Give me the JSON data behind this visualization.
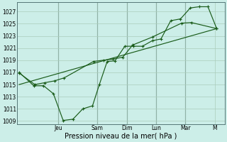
{
  "xlabel": "Pression niveau de la mer( hPa )",
  "bg_color": "#cceee8",
  "grid_color": "#aaccbb",
  "line_color": "#1a5c1a",
  "vline_color": "#557777",
  "ylim": [
    1008.5,
    1028.5
  ],
  "yticks": [
    1009,
    1011,
    1013,
    1015,
    1017,
    1019,
    1021,
    1023,
    1025,
    1027
  ],
  "day_labels": [
    "Jeu",
    "Sam",
    "Dim",
    "Lun",
    "Mar",
    "M"
  ],
  "day_positions": [
    2.0,
    4.0,
    5.5,
    7.0,
    8.5,
    10.0
  ],
  "xlim": [
    -0.1,
    10.5
  ],
  "line1_x": [
    0.0,
    0.75,
    1.25,
    1.75,
    2.25,
    2.75,
    3.25,
    3.75,
    4.1,
    4.5,
    4.9,
    5.4,
    5.85,
    6.3,
    6.8,
    7.25,
    7.75,
    8.25,
    8.75,
    9.2,
    9.65,
    10.1
  ],
  "line1_y": [
    1017.0,
    1014.8,
    1014.8,
    1013.5,
    1009.1,
    1009.3,
    1011.0,
    1011.5,
    1015.0,
    1018.8,
    1018.9,
    1021.3,
    1021.3,
    1021.3,
    1022.2,
    1022.5,
    1025.5,
    1025.8,
    1027.6,
    1027.8,
    1027.8,
    1024.2
  ],
  "line2_x": [
    0.0,
    0.8,
    1.3,
    1.8,
    2.3,
    3.8,
    4.3,
    4.8,
    5.3,
    5.8,
    6.8,
    8.3,
    8.8,
    10.1
  ],
  "line2_y": [
    1016.9,
    1015.0,
    1015.3,
    1015.6,
    1016.1,
    1018.8,
    1019.0,
    1019.2,
    1019.5,
    1021.5,
    1022.8,
    1025.1,
    1025.2,
    1024.2
  ],
  "line3_x": [
    0.0,
    10.1
  ],
  "line3_y": [
    1015.0,
    1024.2
  ],
  "xlabel_fontsize": 7,
  "tick_fontsize": 5.5
}
